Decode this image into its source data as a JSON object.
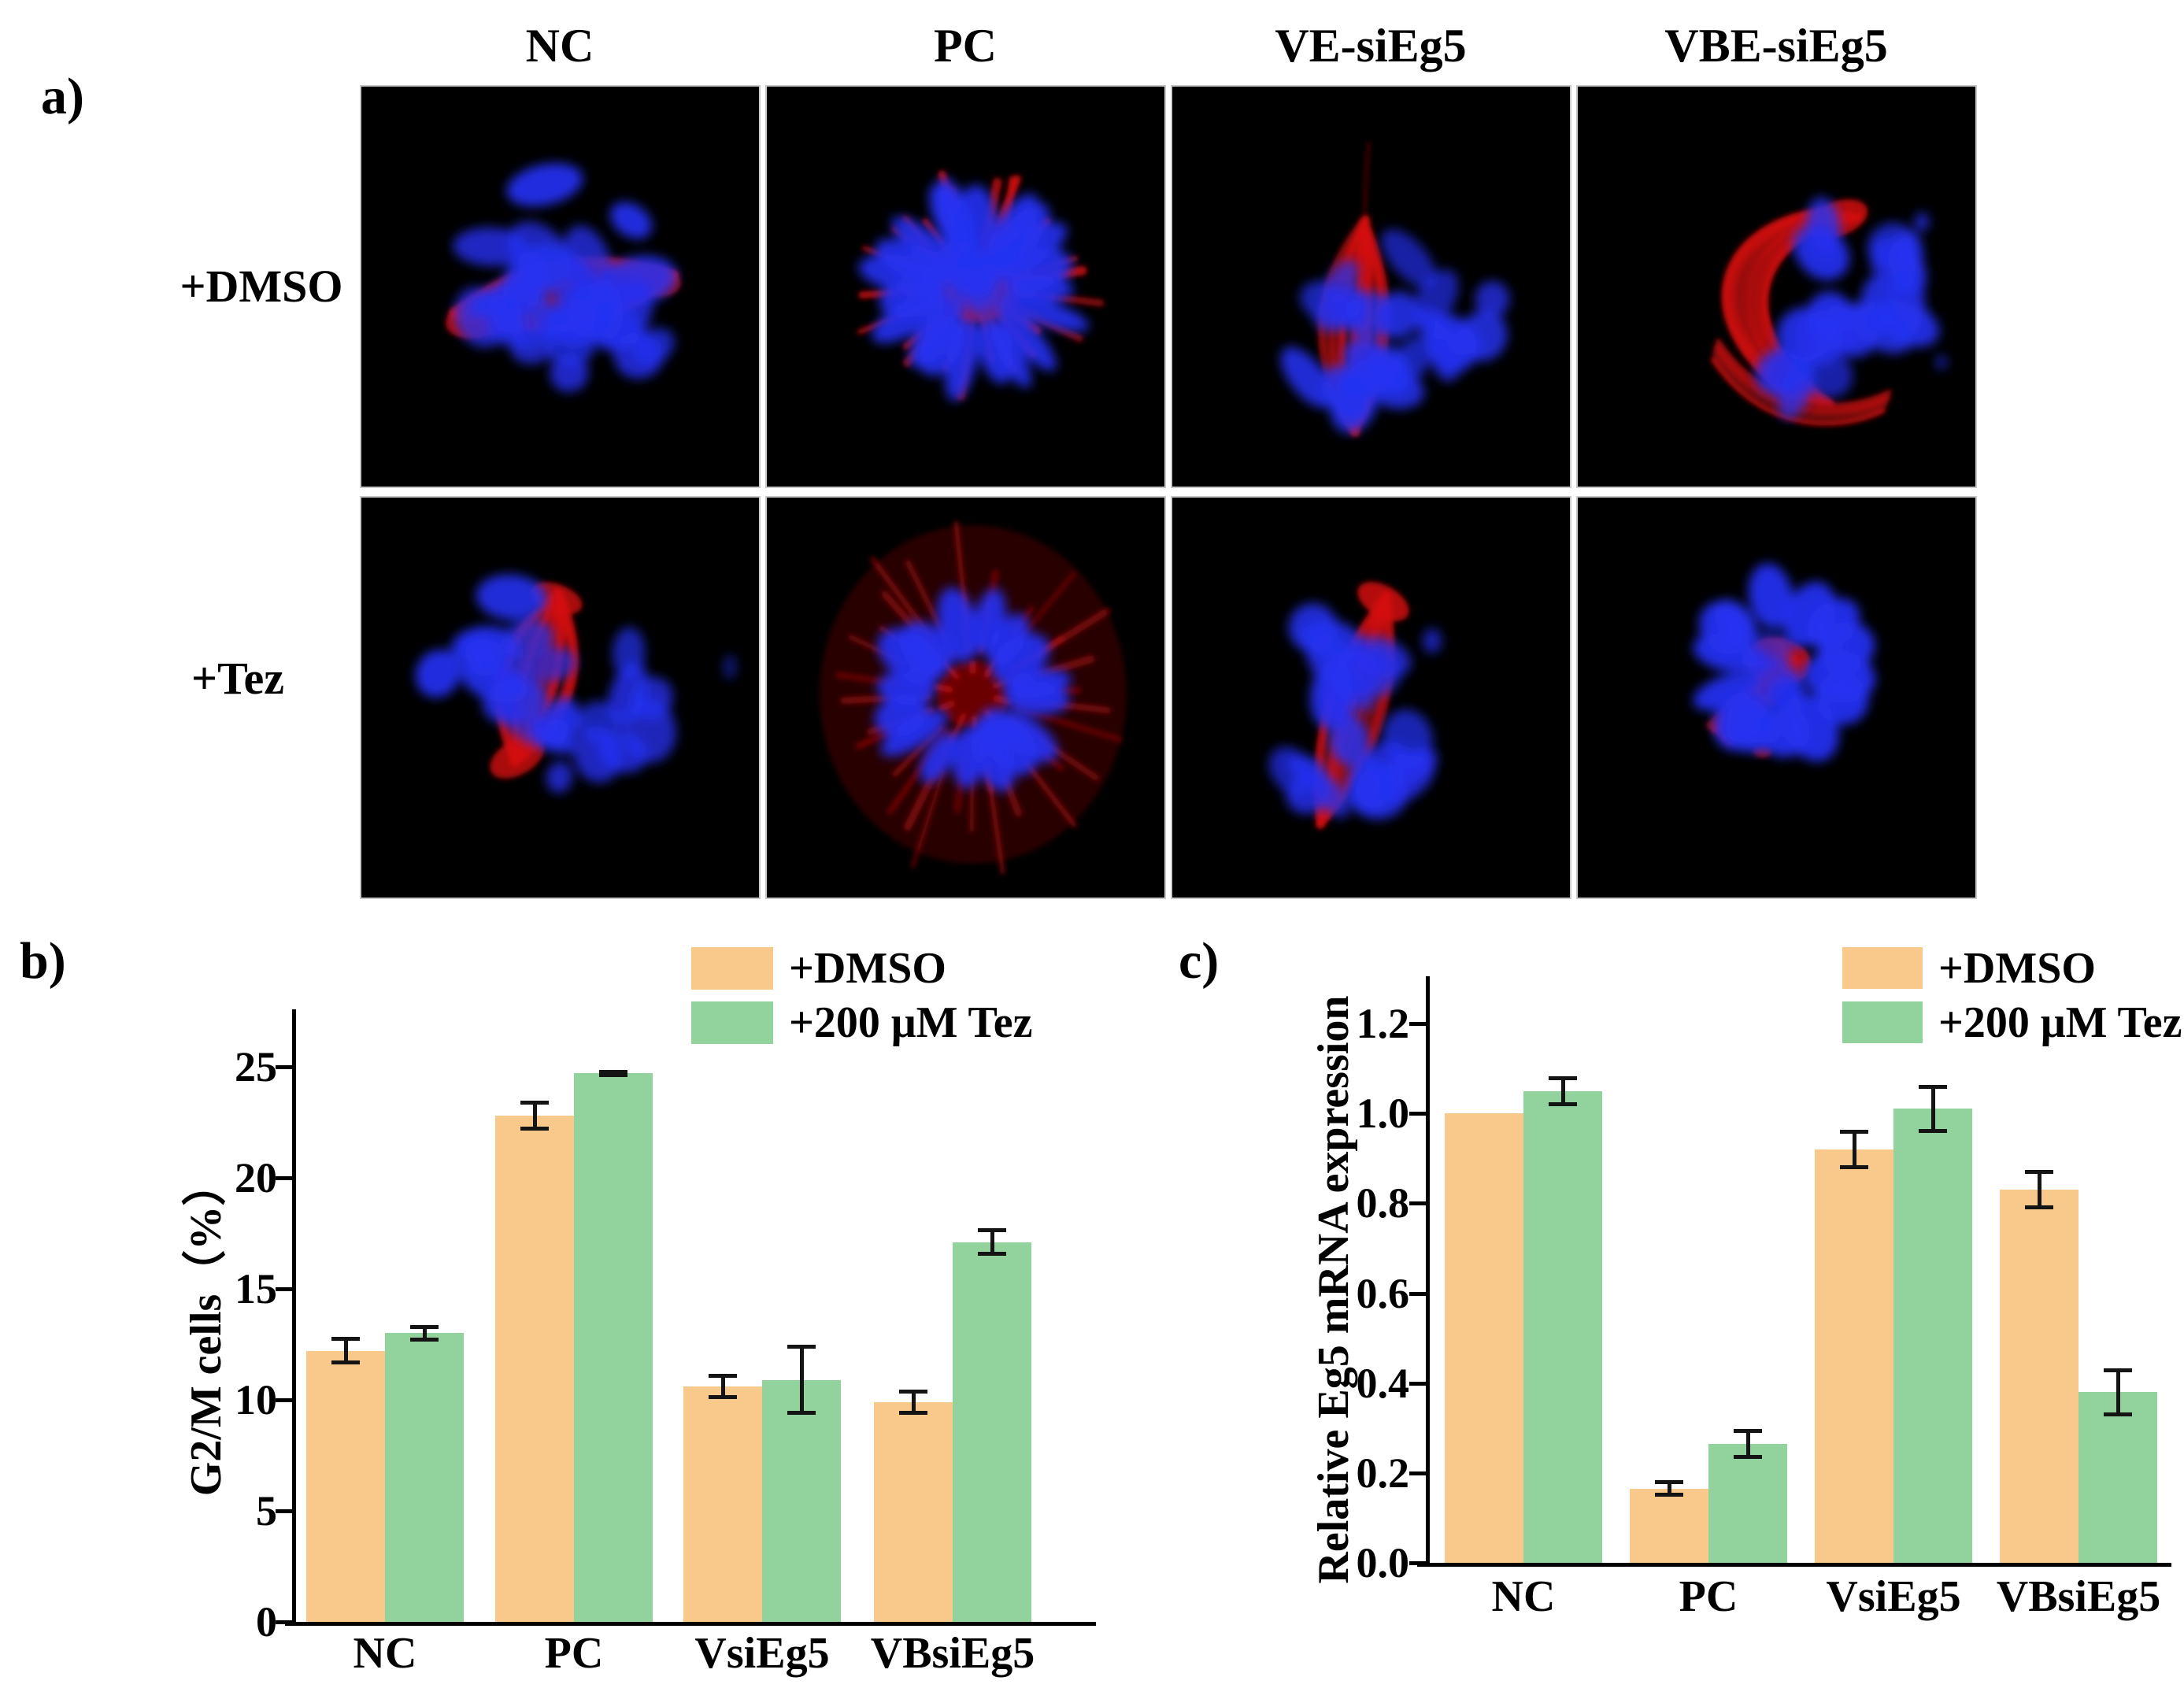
{
  "figure": {
    "panel_a": {
      "label": "a)",
      "column_headers": [
        "NC",
        "PC",
        "VE-siEg5",
        "VBE-siEg5"
      ],
      "row_labels": [
        "+DMSO",
        "+Tez"
      ],
      "image_type": "fluorescence microscopy, mitotic spindles",
      "stain_colors": {
        "dna_blue": "#2531f2",
        "tubulin_red": "#d30e0e",
        "background": "#000000"
      }
    },
    "panel_b_label": "b)",
    "panel_c_label": "c)"
  },
  "legend": {
    "dmso_label": "+DMSO",
    "tez_label": "+200 μM Tez",
    "dmso_color": "#F9C98C",
    "tez_color": "#92D29C"
  },
  "chart_data": [
    {
      "id": "b",
      "type": "bar",
      "title": "",
      "xlabel": "",
      "ylabel": "G2/M cells（%）",
      "categories": [
        "NC",
        "PC",
        "VsiEg5",
        "VBsiEg5"
      ],
      "series": [
        {
          "name": "+DMSO",
          "color": "#F9C98C",
          "values": [
            12.2,
            22.8,
            10.6,
            9.9
          ],
          "errors": [
            0.55,
            0.6,
            0.5,
            0.5
          ]
        },
        {
          "name": "+200 μM Tez",
          "color": "#92D29C",
          "values": [
            13.0,
            24.7,
            10.9,
            17.1
          ],
          "errors": [
            0.3,
            0.1,
            1.5,
            0.55
          ]
        }
      ],
      "ylim": [
        0,
        27.6
      ],
      "yticks": [
        0,
        5,
        10,
        15,
        20,
        25
      ],
      "ytick_labels": [
        "0",
        "5",
        "10",
        "15",
        "20",
        "25"
      ],
      "grid": false,
      "legend_position": "top-right"
    },
    {
      "id": "c",
      "type": "bar",
      "title": "",
      "xlabel": "",
      "ylabel": "Relative Eg5 mRNA expression",
      "categories": [
        "NC",
        "PC",
        "VsiEg5",
        "VBsiEg5"
      ],
      "series": [
        {
          "name": "+DMSO",
          "color": "#F9C98C",
          "values": [
            1.0,
            0.165,
            0.92,
            0.83
          ],
          "errors": [
            null,
            0.015,
            0.04,
            0.04
          ]
        },
        {
          "name": "+200 μM Tez",
          "color": "#92D29C",
          "values": [
            1.05,
            0.265,
            1.01,
            0.38
          ],
          "errors": [
            0.03,
            0.03,
            0.05,
            0.05
          ]
        }
      ],
      "ylim": [
        0,
        1.3
      ],
      "yticks": [
        0.0,
        0.2,
        0.4,
        0.6,
        0.8,
        1.0,
        1.2
      ],
      "ytick_labels": [
        "0.0",
        "0.2",
        "0.4",
        "0.6",
        "0.8",
        "1.0",
        "1.2"
      ],
      "grid": false,
      "legend_position": "top-right"
    }
  ]
}
